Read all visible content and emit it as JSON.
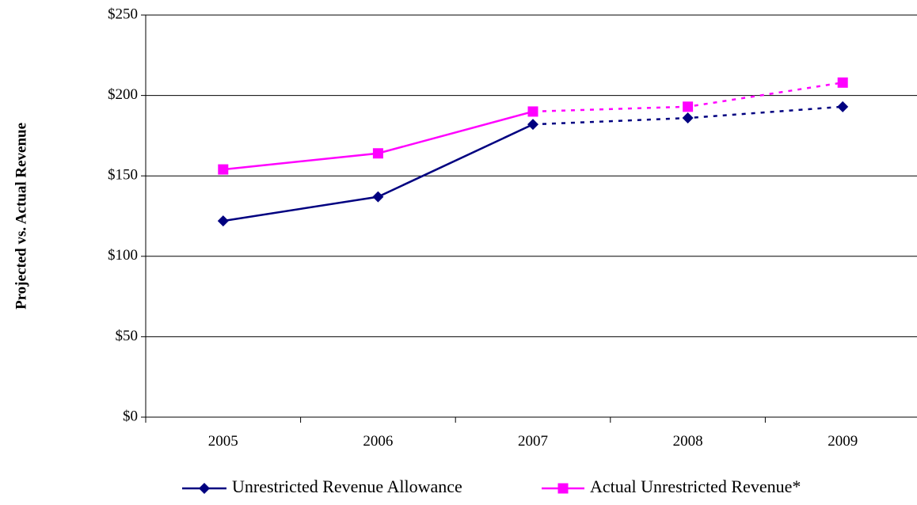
{
  "chart_data": {
    "type": "line",
    "title": "",
    "xlabel": "",
    "ylabel": "Projected vs. Actual Revenue",
    "categories": [
      "2005",
      "2006",
      "2007",
      "2008",
      "2009"
    ],
    "y_ticks": [
      "$0",
      "$50",
      "$100",
      "$150",
      "$200",
      "$250"
    ],
    "ylim": [
      0,
      250
    ],
    "grid": "horizontal",
    "legend_position": "bottom",
    "series": [
      {
        "name": "Unrestricted Revenue Allowance",
        "values": [
          122,
          137,
          182,
          186,
          193
        ],
        "color": "#000080",
        "marker": "diamond",
        "solid_through_index": 2
      },
      {
        "name": "Actual Unrestricted Revenue*",
        "values": [
          154,
          164,
          190,
          193,
          208
        ],
        "color": "#ff00ff",
        "marker": "square",
        "solid_through_index": 2
      }
    ]
  }
}
